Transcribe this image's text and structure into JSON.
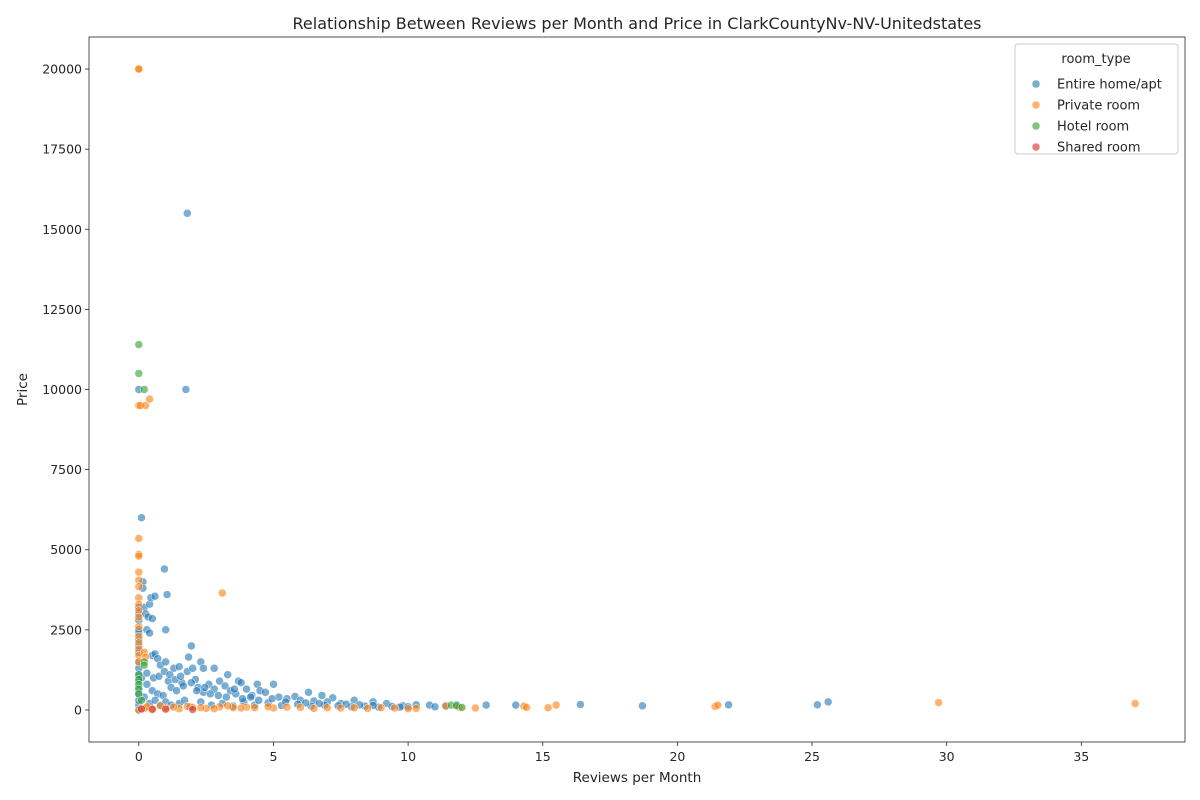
{
  "chart_data": {
    "type": "scatter",
    "title": "Relationship Between Reviews per Month and Price in ClarkCountyNv-NV-Unitedstates",
    "xlabel": "Reviews per Month",
    "ylabel": "Price",
    "xlim": [
      -1.85,
      38.85
    ],
    "ylim": [
      -1000,
      21000
    ],
    "xticks": [
      0,
      5,
      10,
      15,
      20,
      25,
      30,
      35
    ],
    "yticks": [
      0,
      2500,
      5000,
      7500,
      10000,
      12500,
      15000,
      17500,
      20000
    ],
    "grid": false,
    "legend_title": "room_type",
    "legend_position": "top-right",
    "series": [
      {
        "name": "Entire home/apt",
        "color": "#1f77b4",
        "points": [
          [
            0,
            0
          ],
          [
            0,
            150
          ],
          [
            0,
            300
          ],
          [
            0,
            500
          ],
          [
            0,
            700
          ],
          [
            0,
            900
          ],
          [
            0,
            1100
          ],
          [
            0,
            1300
          ],
          [
            0,
            1500
          ],
          [
            0,
            1800
          ],
          [
            0,
            2000
          ],
          [
            0,
            2200
          ],
          [
            0,
            2400
          ],
          [
            0,
            2500
          ],
          [
            0,
            2800
          ],
          [
            0,
            3000
          ],
          [
            0,
            3200
          ],
          [
            0,
            10000
          ],
          [
            0.1,
            6000
          ],
          [
            0.15,
            4000
          ],
          [
            0.15,
            3800
          ],
          [
            0.2,
            3200
          ],
          [
            0.25,
            3000
          ],
          [
            0.3,
            2500
          ],
          [
            0.35,
            2900
          ],
          [
            0.4,
            3300
          ],
          [
            0.45,
            3500
          ],
          [
            0.4,
            2400
          ],
          [
            0.5,
            2850
          ],
          [
            0.6,
            3550
          ],
          [
            0.5,
            1700
          ],
          [
            0.6,
            1750
          ],
          [
            0.7,
            1600
          ],
          [
            0.8,
            1400
          ],
          [
            1.0,
            1500
          ],
          [
            0.95,
            4400
          ],
          [
            1.05,
            3600
          ],
          [
            1.0,
            2500
          ],
          [
            1.3,
            1300
          ],
          [
            1.5,
            1350
          ],
          [
            1.8,
            15500
          ],
          [
            1.75,
            10000
          ],
          [
            1.85,
            1650
          ],
          [
            1.95,
            2000
          ],
          [
            2.3,
            1500
          ],
          [
            2.4,
            1300
          ],
          [
            2.8,
            1300
          ],
          [
            3.3,
            1100
          ],
          [
            3.7,
            900
          ],
          [
            4.4,
            800
          ],
          [
            5.0,
            800
          ],
          [
            6.3,
            550
          ],
          [
            6.8,
            450
          ],
          [
            7.2,
            380
          ],
          [
            8.0,
            300
          ],
          [
            8.7,
            250
          ],
          [
            9.2,
            200
          ],
          [
            9.8,
            130
          ],
          [
            10.3,
            160
          ],
          [
            10.8,
            150
          ],
          [
            11.0,
            100
          ],
          [
            11.4,
            130
          ],
          [
            11.8,
            160
          ],
          [
            12.9,
            150
          ],
          [
            14.0,
            150
          ],
          [
            16.4,
            170
          ],
          [
            18.7,
            130
          ],
          [
            21.9,
            160
          ],
          [
            25.2,
            160
          ],
          [
            25.6,
            250
          ],
          [
            0.3,
            800
          ],
          [
            0.5,
            600
          ],
          [
            0.7,
            500
          ],
          [
            0.9,
            450
          ],
          [
            1.1,
            900
          ],
          [
            1.2,
            700
          ],
          [
            1.4,
            600
          ],
          [
            1.6,
            850
          ],
          [
            1.8,
            1200
          ],
          [
            2.0,
            1300
          ],
          [
            2.1,
            950
          ],
          [
            2.2,
            700
          ],
          [
            2.4,
            550
          ],
          [
            2.6,
            800
          ],
          [
            2.8,
            650
          ],
          [
            3.0,
            900
          ],
          [
            3.2,
            750
          ],
          [
            3.4,
            600
          ],
          [
            3.6,
            500
          ],
          [
            3.8,
            850
          ],
          [
            4.0,
            650
          ],
          [
            4.2,
            450
          ],
          [
            4.5,
            600
          ],
          [
            4.7,
            550
          ],
          [
            5.2,
            400
          ],
          [
            5.5,
            350
          ],
          [
            5.8,
            420
          ],
          [
            6.0,
            300
          ],
          [
            6.5,
            280
          ],
          [
            7.0,
            250
          ],
          [
            7.5,
            200
          ],
          [
            0.2,
            400
          ],
          [
            0.4,
            200
          ],
          [
            0.6,
            300
          ],
          [
            0.8,
            150
          ],
          [
            1.0,
            250
          ],
          [
            1.2,
            150
          ],
          [
            1.5,
            200
          ],
          [
            1.7,
            300
          ],
          [
            1.9,
            100
          ],
          [
            2.3,
            250
          ],
          [
            2.7,
            150
          ],
          [
            3.1,
            200
          ],
          [
            3.5,
            120
          ],
          [
            3.9,
            250
          ],
          [
            4.3,
            150
          ],
          [
            4.8,
            220
          ],
          [
            5.3,
            140
          ],
          [
            5.9,
            180
          ],
          [
            6.4,
            120
          ],
          [
            6.9,
            150
          ],
          [
            7.4,
            130
          ],
          [
            7.9,
            100
          ],
          [
            8.4,
            120
          ],
          [
            8.9,
            90
          ],
          [
            9.4,
            110
          ],
          [
            10.0,
            100
          ],
          [
            0.1,
            1000
          ],
          [
            0.3,
            1150
          ],
          [
            0.55,
            1000
          ],
          [
            0.75,
            1050
          ],
          [
            0.95,
            1200
          ],
          [
            1.15,
            1100
          ],
          [
            1.35,
            950
          ],
          [
            1.55,
            1050
          ],
          [
            1.65,
            750
          ],
          [
            1.95,
            850
          ],
          [
            2.15,
            600
          ],
          [
            2.45,
            700
          ],
          [
            2.65,
            500
          ],
          [
            2.95,
            450
          ],
          [
            3.25,
            400
          ],
          [
            3.55,
            650
          ],
          [
            3.85,
            350
          ],
          [
            4.15,
            400
          ],
          [
            4.45,
            300
          ],
          [
            4.95,
            350
          ],
          [
            5.45,
            250
          ],
          [
            6.2,
            220
          ],
          [
            6.7,
            200
          ],
          [
            7.7,
            180
          ],
          [
            8.2,
            160
          ],
          [
            8.7,
            140
          ],
          [
            9.7,
            90
          ]
        ]
      },
      {
        "name": "Private room",
        "color": "#ff7f0e",
        "points": [
          [
            0,
            20000
          ],
          [
            0,
            20000
          ],
          [
            0,
            9500
          ],
          [
            0.05,
            9500
          ],
          [
            0.25,
            9500
          ],
          [
            0.4,
            9700
          ],
          [
            0,
            5350
          ],
          [
            0,
            4850
          ],
          [
            0,
            4800
          ],
          [
            0,
            4300
          ],
          [
            0,
            4050
          ],
          [
            0,
            3850
          ],
          [
            0,
            3500
          ],
          [
            0,
            3300
          ],
          [
            0,
            3100
          ],
          [
            0,
            2900
          ],
          [
            0,
            2600
          ],
          [
            0,
            2300
          ],
          [
            0,
            2100
          ],
          [
            0,
            1900
          ],
          [
            0,
            1700
          ],
          [
            0,
            1500
          ],
          [
            0.2,
            1800
          ],
          [
            0.25,
            1650
          ],
          [
            3.1,
            3650
          ],
          [
            0,
            0
          ],
          [
            0.2,
            50
          ],
          [
            0.5,
            30
          ],
          [
            1.0,
            60
          ],
          [
            1.5,
            40
          ],
          [
            2.0,
            80
          ],
          [
            2.5,
            50
          ],
          [
            3.0,
            100
          ],
          [
            3.5,
            70
          ],
          [
            4.0,
            90
          ],
          [
            5.0,
            60
          ],
          [
            6.0,
            80
          ],
          [
            7.0,
            70
          ],
          [
            7.5,
            60
          ],
          [
            8.5,
            50
          ],
          [
            9.0,
            70
          ],
          [
            10.3,
            50
          ],
          [
            11.4,
            120
          ],
          [
            11.9,
            80
          ],
          [
            12.5,
            60
          ],
          [
            14.3,
            120
          ],
          [
            14.4,
            80
          ],
          [
            15.2,
            70
          ],
          [
            15.5,
            150
          ],
          [
            21.4,
            110
          ],
          [
            21.5,
            150
          ],
          [
            29.7,
            230
          ],
          [
            37.0,
            200
          ],
          [
            0.3,
            100
          ],
          [
            0.8,
            130
          ],
          [
            1.3,
            90
          ],
          [
            1.8,
            110
          ],
          [
            2.3,
            70
          ],
          [
            2.8,
            40
          ],
          [
            3.3,
            130
          ],
          [
            3.8,
            60
          ],
          [
            4.3,
            70
          ],
          [
            4.8,
            100
          ],
          [
            5.5,
            90
          ],
          [
            6.5,
            50
          ],
          [
            8.0,
            70
          ],
          [
            9.5,
            60
          ],
          [
            10.0,
            40
          ]
        ]
      },
      {
        "name": "Hotel room",
        "color": "#2ca02c",
        "points": [
          [
            0,
            11400
          ],
          [
            0,
            10500
          ],
          [
            0.2,
            10000
          ],
          [
            0.2,
            1500
          ],
          [
            0.2,
            1400
          ],
          [
            0,
            1100
          ],
          [
            0,
            950
          ],
          [
            0,
            800
          ],
          [
            0,
            650
          ],
          [
            0,
            500
          ],
          [
            0.1,
            300
          ],
          [
            11.6,
            150
          ],
          [
            11.8,
            130
          ],
          [
            12.0,
            80
          ]
        ]
      },
      {
        "name": "Shared room",
        "color": "#d62728",
        "points": [
          [
            0.1,
            30
          ],
          [
            0.5,
            20
          ],
          [
            1.0,
            25
          ],
          [
            2.0,
            15
          ]
        ]
      }
    ]
  }
}
